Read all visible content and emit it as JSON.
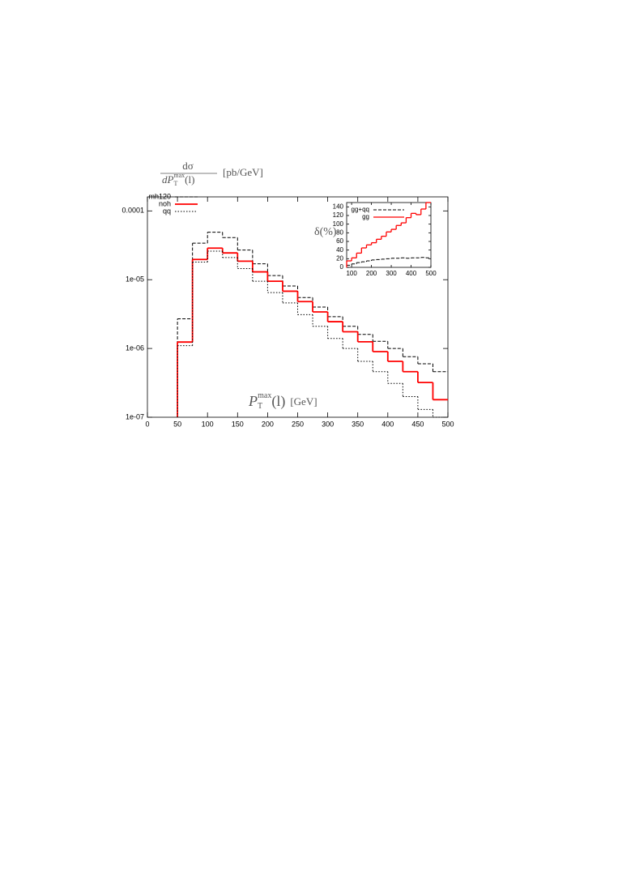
{
  "chart_data": [
    {
      "type": "histogram",
      "y_label": {
        "numerator": "dσ",
        "denominator": {
          "base": "dP",
          "sub": "T",
          "sup": "max",
          "tail": "(l)"
        },
        "unit": "[pb/GeV]"
      },
      "x_label": {
        "base": "P",
        "sub": "T",
        "sup": "max",
        "tail": "(l)",
        "unit": "[GeV]"
      },
      "bins": [
        50,
        75,
        100,
        125,
        150,
        175,
        200,
        225,
        250,
        275,
        300,
        325,
        350,
        375,
        400,
        425,
        450,
        475,
        500
      ],
      "series": [
        {
          "name": "mh120",
          "color": "#000000",
          "line_style": "dashed",
          "values": [
            2.7e-06,
            3.4e-05,
            4.9e-05,
            4.1e-05,
            2.7e-05,
            1.7e-05,
            1.15e-05,
            8.1e-06,
            5.5e-06,
            4e-06,
            2.9e-06,
            2.1e-06,
            1.6e-06,
            1.27e-06,
            1e-06,
            7.6e-07,
            6e-07,
            4.6e-07
          ]
        },
        {
          "name": "noh",
          "color": "#ff0000",
          "line_style": "solid",
          "values": [
            1.24e-06,
            1.97e-05,
            2.88e-05,
            2.45e-05,
            1.86e-05,
            1.3e-05,
            9.5e-06,
            6.8e-06,
            4.8e-06,
            3.4e-06,
            2.45e-06,
            1.75e-06,
            1.25e-06,
            9e-07,
            6.5e-07,
            4.6e-07,
            3.2e-07,
            1.8e-07
          ]
        },
        {
          "name": "qq",
          "color": "#000000",
          "line_style": "dotted",
          "values": [
            1.1e-06,
            1.8e-05,
            2.6e-05,
            2.1e-05,
            1.45e-05,
            9.5e-06,
            6.5e-06,
            4.6e-06,
            3.1e-06,
            2.1e-06,
            1.4e-06,
            1e-06,
            6.5e-07,
            4.6e-07,
            3.1e-07,
            2e-07,
            1.3e-07,
            1e-07
          ]
        }
      ],
      "xlim": [
        0,
        500
      ],
      "ylim": [
        1e-07,
        0.00016
      ],
      "yscale": "log",
      "xticks": [
        0,
        50,
        100,
        150,
        200,
        250,
        300,
        350,
        400,
        450,
        500
      ],
      "yticks": [
        {
          "value": 1e-07,
          "label": "1e-07"
        },
        {
          "value": 1e-06,
          "label": "1e-06"
        },
        {
          "value": 1e-05,
          "label": "1e-05"
        },
        0.0001
      ],
      "legend": "upper left"
    },
    {
      "type": "histogram",
      "y_label": "δ(%)",
      "bins": [
        75,
        100,
        125,
        150,
        175,
        200,
        225,
        250,
        275,
        300,
        325,
        350,
        375,
        400,
        425,
        450,
        475,
        500
      ],
      "series": [
        {
          "name": "gg+qq",
          "color": "#000000",
          "line_style": "dashed",
          "values": [
            5,
            8,
            11,
            13,
            15,
            17,
            18,
            19,
            20,
            21,
            21,
            22,
            21,
            22,
            22,
            23,
            22
          ]
        },
        {
          "name": "gg",
          "color": "#ff0000",
          "line_style": "solid",
          "values": [
            15,
            22,
            33,
            45,
            52,
            57,
            65,
            72,
            82,
            88,
            97,
            103,
            115,
            125,
            122,
            135,
            150
          ]
        }
      ],
      "xlim": [
        75,
        500
      ],
      "ylim": [
        0,
        150
      ],
      "yscale": "linear",
      "xticks": [
        100,
        200,
        300,
        400,
        500
      ],
      "yticks": [
        0,
        20,
        40,
        60,
        80,
        100,
        120,
        140
      ],
      "legend": "upper left"
    }
  ]
}
